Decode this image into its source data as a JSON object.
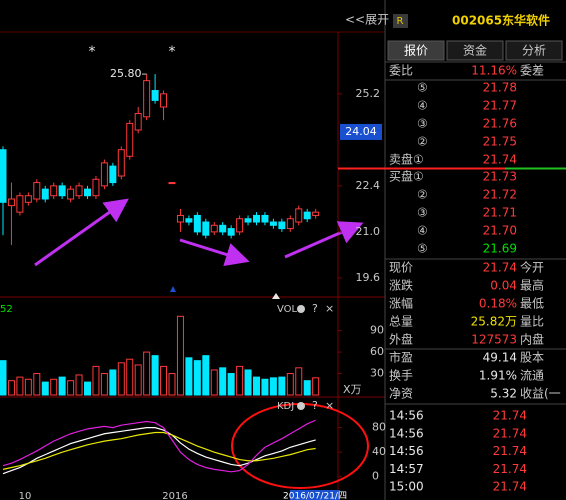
{
  "header": {
    "expand": "<<展开",
    "badge": "R",
    "code": "002065",
    "name": "东华软件"
  },
  "tabs": [
    "报价",
    "资金",
    "分析"
  ],
  "ratio": [
    "委比",
    "11.16%",
    "委差"
  ],
  "asks": [
    [
      "⑤",
      "21.78"
    ],
    [
      "④",
      "21.77"
    ],
    [
      "③",
      "21.76"
    ],
    [
      "②",
      "21.75"
    ],
    [
      "卖盘①",
      "21.74"
    ]
  ],
  "bids": [
    [
      "买盘①",
      "21.73"
    ],
    [
      "②",
      "21.72"
    ],
    [
      "③",
      "21.71"
    ],
    [
      "④",
      "21.70"
    ],
    [
      "⑤",
      "21.69"
    ]
  ],
  "stats": [
    [
      "现价",
      "21.74",
      "今开"
    ],
    [
      "涨跌",
      "0.04",
      "最高"
    ],
    [
      "涨幅",
      "0.18%",
      "最低"
    ],
    [
      "总量",
      "25.82万",
      "量比"
    ],
    [
      "外盘",
      "127573",
      "内盘"
    ],
    [
      "市盈",
      "49.14",
      "股本"
    ],
    [
      "换手",
      "1.91%",
      "流通"
    ],
    [
      "净资",
      "5.32",
      "收益(一"
    ]
  ],
  "trades": [
    [
      "14:56",
      "21.74"
    ],
    [
      "14:56",
      "21.74"
    ],
    [
      "14:56",
      "21.74"
    ],
    [
      "14:57",
      "21.74"
    ],
    [
      "15:00",
      "21.74"
    ]
  ],
  "chart_data": {
    "type": "candlestick",
    "ylim": [
      19.08,
      27.75
    ],
    "yticks": [
      25.2,
      22.4,
      {
        "value": 21.0,
        "label": "21.0"
      },
      19.6
    ],
    "price_tag": 24.04,
    "peak_label": "25.80",
    "markers": [
      "*",
      "*"
    ],
    "open": [
      23.5,
      21.8,
      21.6,
      21.9,
      22.0,
      22.3,
      22.1,
      22.4,
      22.0,
      22.1,
      22.3,
      22.1,
      22.4,
      23.0,
      22.7,
      23.3,
      24.1,
      24.5,
      25.3,
      24.8,
      22.5,
      21.3,
      21.4,
      21.5,
      21.3,
      21.0,
      21.2,
      21.1,
      21.0,
      21.4,
      21.5,
      21.5,
      21.3,
      21.3,
      21.1,
      21.3,
      21.6,
      21.5
    ],
    "high": [
      23.6,
      22.5,
      22.2,
      22.2,
      22.6,
      22.4,
      22.5,
      22.5,
      22.4,
      22.5,
      22.4,
      22.7,
      23.2,
      23.1,
      23.6,
      24.4,
      24.8,
      25.8,
      25.8,
      25.3,
      22.5,
      21.7,
      21.5,
      21.6,
      21.4,
      21.3,
      21.3,
      21.2,
      21.5,
      21.5,
      21.6,
      21.6,
      21.4,
      21.4,
      21.5,
      21.8,
      21.7,
      21.7
    ],
    "low": [
      20.9,
      20.6,
      21.5,
      21.8,
      21.9,
      21.9,
      22.0,
      22.0,
      21.9,
      22.0,
      22.0,
      22.0,
      22.3,
      22.4,
      22.6,
      23.2,
      24.0,
      24.4,
      24.9,
      24.4,
      22.5,
      21.0,
      21.2,
      20.9,
      20.8,
      20.9,
      20.9,
      20.8,
      20.9,
      21.2,
      21.2,
      21.2,
      21.1,
      21.0,
      21.0,
      21.2,
      21.3,
      21.4
    ],
    "close": [
      21.9,
      22.0,
      22.1,
      22.1,
      22.5,
      22.0,
      22.4,
      22.1,
      22.3,
      22.4,
      22.1,
      22.6,
      23.1,
      22.5,
      23.5,
      24.3,
      24.6,
      25.6,
      25.0,
      25.2,
      22.5,
      21.5,
      21.3,
      21.0,
      20.9,
      21.2,
      21.0,
      20.9,
      21.4,
      21.3,
      21.3,
      21.3,
      21.2,
      21.1,
      21.4,
      21.7,
      21.4,
      21.6
    ],
    "volume": {
      "label": "VOL",
      "left": "52",
      "unit": "X万",
      "tools": [
        "?",
        "×"
      ],
      "ylim": [
        0,
        130
      ],
      "yticks": [
        30,
        60,
        90
      ],
      "values": [
        48,
        20,
        25,
        22,
        30,
        18,
        22,
        25,
        20,
        28,
        18,
        40,
        30,
        35,
        45,
        50,
        42,
        60,
        55,
        40,
        30,
        110,
        52,
        48,
        55,
        35,
        38,
        30,
        40,
        35,
        25,
        22,
        24,
        25,
        30,
        38,
        20,
        24
      ]
    },
    "kdj": {
      "label": "KDJ",
      "tools": [
        "?",
        "×"
      ],
      "ylim": [
        -20,
        125
      ],
      "yticks": [
        0,
        40,
        80
      ],
      "series": [
        {
          "color": "#ffffff",
          "values": [
            5,
            10,
            15,
            22,
            30,
            36,
            42,
            48,
            54,
            58,
            62,
            66,
            70,
            72,
            74,
            76,
            78,
            80,
            80,
            76,
            68,
            55,
            45,
            38,
            32,
            28,
            24,
            20,
            18,
            22,
            28,
            34,
            38,
            42,
            48,
            52,
            56,
            60
          ]
        },
        {
          "color": "#e8e800",
          "values": [
            12,
            15,
            18,
            22,
            26,
            30,
            35,
            40,
            44,
            48,
            52,
            55,
            58,
            60,
            62,
            65,
            68,
            70,
            72,
            72,
            68,
            62,
            56,
            50,
            45,
            40,
            36,
            32,
            28,
            26,
            26,
            28,
            30,
            33,
            36,
            40,
            44,
            46
          ]
        },
        {
          "color": "#e020e0",
          "values": [
            18,
            22,
            28,
            35,
            42,
            50,
            58,
            64,
            70,
            74,
            78,
            80,
            82,
            80,
            84,
            86,
            88,
            90,
            88,
            80,
            60,
            40,
            28,
            20,
            15,
            12,
            10,
            8,
            10,
            20,
            35,
            48,
            55,
            62,
            70,
            78,
            86,
            92
          ]
        }
      ]
    },
    "x_labels": [
      "10",
      "2016"
    ],
    "date": "2016/07/21/四"
  }
}
